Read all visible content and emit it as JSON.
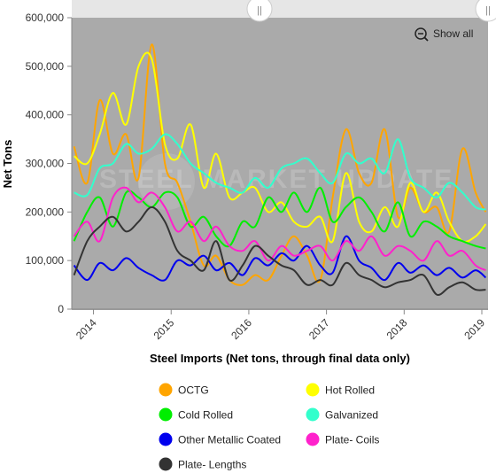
{
  "chart_data": {
    "type": "line",
    "xlabel": "Steel Imports (Net tons, through final data only)",
    "ylabel": "Net Tons",
    "ylim": [
      0,
      600000
    ],
    "xlim": [
      2013.72,
      2019.08
    ],
    "y_ticks": [
      0,
      100000,
      200000,
      300000,
      400000,
      500000,
      600000
    ],
    "y_tick_labels": [
      "0",
      "100,000",
      "200,000",
      "300,000",
      "400,000",
      "500,000",
      "600,000"
    ],
    "x_ticks": [
      2014,
      2015,
      2016,
      2017,
      2018,
      2019
    ],
    "x_tick_labels": [
      "2014",
      "2015",
      "2016",
      "2017",
      "2018",
      "2019"
    ],
    "grid": false,
    "legend_position": "bottom",
    "series": [
      {
        "name": "OCTG",
        "color": "#FFA500",
        "x": [
          2013.75,
          2013.92,
          2014.08,
          2014.25,
          2014.42,
          2014.58,
          2014.75,
          2014.92,
          2015.08,
          2015.25,
          2015.42,
          2015.58,
          2015.75,
          2015.92,
          2016.08,
          2016.25,
          2016.42,
          2016.58,
          2016.75,
          2016.92,
          2017.08,
          2017.25,
          2017.42,
          2017.58,
          2017.75,
          2017.92,
          2018.08,
          2018.25,
          2018.42,
          2018.58,
          2018.75,
          2018.92,
          2019.05
        ],
        "values": [
          335000,
          260000,
          430000,
          320000,
          360000,
          270000,
          545000,
          300000,
          260000,
          180000,
          90000,
          110000,
          60000,
          50000,
          70000,
          60000,
          110000,
          150000,
          110000,
          60000,
          230000,
          370000,
          280000,
          260000,
          370000,
          190000,
          250000,
          200000,
          210000,
          160000,
          330000,
          240000,
          200000
        ]
      },
      {
        "name": "Hot Rolled",
        "color": "#FFFF00",
        "x": [
          2013.75,
          2013.92,
          2014.08,
          2014.25,
          2014.42,
          2014.58,
          2014.75,
          2014.92,
          2015.08,
          2015.25,
          2015.42,
          2015.58,
          2015.75,
          2015.92,
          2016.08,
          2016.25,
          2016.42,
          2016.58,
          2016.75,
          2016.92,
          2017.08,
          2017.25,
          2017.42,
          2017.58,
          2017.75,
          2017.92,
          2018.08,
          2018.25,
          2018.42,
          2018.58,
          2018.75,
          2018.92,
          2019.05
        ],
        "values": [
          315000,
          300000,
          360000,
          445000,
          380000,
          500000,
          515000,
          340000,
          310000,
          380000,
          250000,
          320000,
          230000,
          240000,
          250000,
          200000,
          220000,
          180000,
          170000,
          190000,
          140000,
          280000,
          180000,
          160000,
          210000,
          170000,
          260000,
          200000,
          240000,
          180000,
          140000,
          150000,
          175000
        ]
      },
      {
        "name": "Cold Rolled",
        "color": "#00EE00",
        "x": [
          2013.75,
          2013.92,
          2014.08,
          2014.25,
          2014.42,
          2014.58,
          2014.75,
          2014.92,
          2015.08,
          2015.25,
          2015.42,
          2015.58,
          2015.75,
          2015.92,
          2016.08,
          2016.25,
          2016.42,
          2016.58,
          2016.75,
          2016.92,
          2017.08,
          2017.25,
          2017.42,
          2017.58,
          2017.75,
          2017.92,
          2018.08,
          2018.25,
          2018.42,
          2018.58,
          2018.75,
          2018.92,
          2019.05
        ],
        "values": [
          140000,
          200000,
          230000,
          170000,
          240000,
          230000,
          210000,
          240000,
          230000,
          170000,
          190000,
          150000,
          130000,
          180000,
          170000,
          230000,
          200000,
          240000,
          200000,
          250000,
          180000,
          210000,
          230000,
          200000,
          160000,
          220000,
          150000,
          180000,
          170000,
          150000,
          140000,
          130000,
          125000
        ]
      },
      {
        "name": "Galvanized",
        "color": "#33FFCC",
        "x": [
          2013.75,
          2013.92,
          2014.08,
          2014.25,
          2014.42,
          2014.58,
          2014.75,
          2014.92,
          2015.08,
          2015.25,
          2015.42,
          2015.58,
          2015.75,
          2015.92,
          2016.08,
          2016.25,
          2016.42,
          2016.58,
          2016.75,
          2016.92,
          2017.08,
          2017.25,
          2017.42,
          2017.58,
          2017.75,
          2017.92,
          2018.08,
          2018.25,
          2018.42,
          2018.58,
          2018.75,
          2018.92,
          2019.05
        ],
        "values": [
          240000,
          235000,
          290000,
          300000,
          340000,
          320000,
          330000,
          360000,
          340000,
          300000,
          280000,
          260000,
          250000,
          240000,
          270000,
          250000,
          290000,
          300000,
          310000,
          280000,
          260000,
          320000,
          300000,
          310000,
          280000,
          350000,
          270000,
          250000,
          230000,
          260000,
          240000,
          210000,
          205000
        ]
      },
      {
        "name": "Other Metallic Coated",
        "color": "#0000EE",
        "x": [
          2013.75,
          2013.92,
          2014.08,
          2014.25,
          2014.42,
          2014.58,
          2014.75,
          2014.92,
          2015.08,
          2015.25,
          2015.42,
          2015.58,
          2015.75,
          2015.92,
          2016.08,
          2016.25,
          2016.42,
          2016.58,
          2016.75,
          2016.92,
          2017.08,
          2017.25,
          2017.42,
          2017.58,
          2017.75,
          2017.92,
          2018.08,
          2018.25,
          2018.42,
          2018.58,
          2018.75,
          2018.92,
          2019.05
        ],
        "values": [
          90000,
          60000,
          95000,
          80000,
          105000,
          85000,
          70000,
          60000,
          100000,
          90000,
          110000,
          80000,
          95000,
          70000,
          105000,
          90000,
          115000,
          100000,
          130000,
          90000,
          75000,
          150000,
          100000,
          85000,
          60000,
          95000,
          75000,
          90000,
          70000,
          85000,
          65000,
          80000,
          65000
        ]
      },
      {
        "name": "Plate- Coils",
        "color": "#FF22CC",
        "x": [
          2013.75,
          2013.92,
          2014.08,
          2014.25,
          2014.42,
          2014.58,
          2014.75,
          2014.92,
          2015.08,
          2015.25,
          2015.42,
          2015.58,
          2015.75,
          2015.92,
          2016.08,
          2016.25,
          2016.42,
          2016.58,
          2016.75,
          2016.92,
          2017.08,
          2017.25,
          2017.42,
          2017.58,
          2017.75,
          2017.92,
          2018.08,
          2018.25,
          2018.42,
          2018.58,
          2018.75,
          2018.92,
          2019.05
        ],
        "values": [
          150000,
          180000,
          140000,
          230000,
          250000,
          220000,
          240000,
          210000,
          160000,
          180000,
          140000,
          170000,
          130000,
          120000,
          140000,
          100000,
          130000,
          110000,
          120000,
          130000,
          100000,
          140000,
          120000,
          150000,
          110000,
          130000,
          120000,
          100000,
          140000,
          110000,
          120000,
          90000,
          80000
        ]
      },
      {
        "name": "Plate- Lengths",
        "color": "#333333",
        "x": [
          2013.75,
          2013.92,
          2014.08,
          2014.25,
          2014.42,
          2014.58,
          2014.75,
          2014.92,
          2015.08,
          2015.25,
          2015.42,
          2015.58,
          2015.75,
          2015.92,
          2016.08,
          2016.25,
          2016.42,
          2016.58,
          2016.75,
          2016.92,
          2017.08,
          2017.25,
          2017.42,
          2017.58,
          2017.75,
          2017.92,
          2018.08,
          2018.25,
          2018.42,
          2018.58,
          2018.75,
          2018.92,
          2019.05
        ],
        "values": [
          70000,
          140000,
          170000,
          190000,
          160000,
          180000,
          210000,
          180000,
          120000,
          100000,
          80000,
          140000,
          60000,
          90000,
          130000,
          110000,
          90000,
          80000,
          50000,
          60000,
          50000,
          95000,
          70000,
          60000,
          45000,
          55000,
          60000,
          70000,
          30000,
          45000,
          55000,
          40000,
          40000
        ]
      }
    ]
  },
  "watermark": "STEEL MARKET UPDATE",
  "navigator": {
    "left_handle": "||",
    "right_handle": "||"
  },
  "controls": {
    "show_all_label": "Show all"
  },
  "style": {
    "plot_bg": "#AAAAAA",
    "navigator_bg": "#E6E6E6"
  }
}
